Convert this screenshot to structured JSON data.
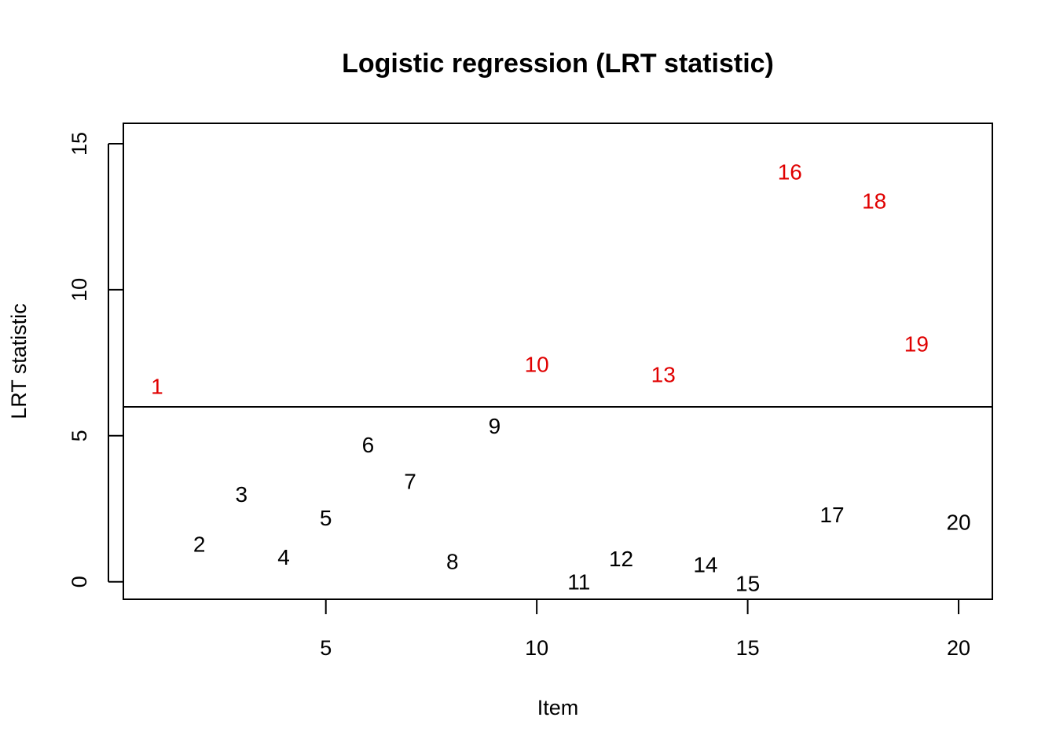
{
  "chart_data": {
    "type": "scatter",
    "title": "Logistic regression (LRT statistic)",
    "xlabel": "Item",
    "ylabel": "LRT statistic",
    "xlim": [
      0.2,
      20.8
    ],
    "ylim": [
      -0.6,
      15.7
    ],
    "xticks": [
      5,
      10,
      15,
      20
    ],
    "yticks": [
      0,
      5,
      10,
      15
    ],
    "threshold": 5.99,
    "colors": {
      "normal": "#000000",
      "flagged": "#e00000"
    },
    "points": [
      {
        "label": "1",
        "x": 1,
        "y": 6.7,
        "flagged": true
      },
      {
        "label": "2",
        "x": 2,
        "y": 1.3,
        "flagged": false
      },
      {
        "label": "3",
        "x": 3,
        "y": 3.0,
        "flagged": false
      },
      {
        "label": "4",
        "x": 4,
        "y": 0.85,
        "flagged": false
      },
      {
        "label": "5",
        "x": 5,
        "y": 2.2,
        "flagged": false
      },
      {
        "label": "6",
        "x": 6,
        "y": 4.7,
        "flagged": false
      },
      {
        "label": "7",
        "x": 7,
        "y": 3.45,
        "flagged": false
      },
      {
        "label": "8",
        "x": 8,
        "y": 0.7,
        "flagged": false
      },
      {
        "label": "9",
        "x": 9,
        "y": 5.35,
        "flagged": false
      },
      {
        "label": "10",
        "x": 10,
        "y": 7.45,
        "flagged": true
      },
      {
        "label": "11",
        "x": 11,
        "y": 0.0,
        "flagged": false
      },
      {
        "label": "12",
        "x": 12,
        "y": 0.8,
        "flagged": false
      },
      {
        "label": "13",
        "x": 13,
        "y": 7.1,
        "flagged": true
      },
      {
        "label": "14",
        "x": 14,
        "y": 0.6,
        "flagged": false
      },
      {
        "label": "15",
        "x": 15,
        "y": -0.05,
        "flagged": false
      },
      {
        "label": "16",
        "x": 16,
        "y": 14.05,
        "flagged": true
      },
      {
        "label": "17",
        "x": 17,
        "y": 2.3,
        "flagged": false
      },
      {
        "label": "18",
        "x": 18,
        "y": 13.05,
        "flagged": true
      },
      {
        "label": "19",
        "x": 19,
        "y": 8.15,
        "flagged": true
      },
      {
        "label": "20",
        "x": 20,
        "y": 2.05,
        "flagged": false
      }
    ]
  }
}
